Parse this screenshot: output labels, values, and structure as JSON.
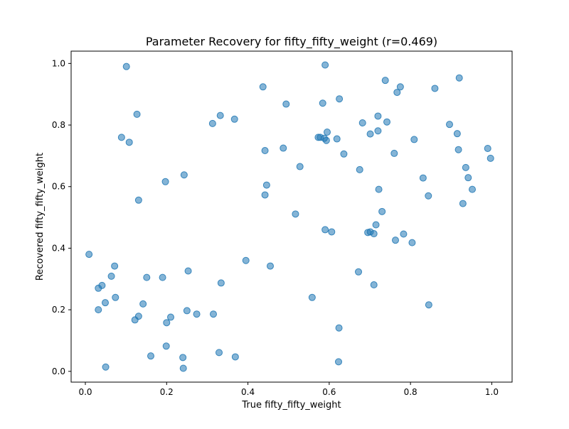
{
  "chart_data": {
    "type": "scatter",
    "title": "Parameter Recovery for fifty_fifty_weight (r=0.469)",
    "xlabel": "True fifty_fifty_weight",
    "ylabel": "Recovered fifty_fifty_weight",
    "xlim": [
      -0.035,
      1.05
    ],
    "ylim": [
      -0.035,
      1.04
    ],
    "xticks": [
      0.0,
      0.2,
      0.4,
      0.6,
      0.8,
      1.0
    ],
    "xtick_labels": [
      "0.0",
      "0.2",
      "0.4",
      "0.6",
      "0.8",
      "1.0"
    ],
    "yticks": [
      0.0,
      0.2,
      0.4,
      0.6,
      0.8,
      1.0
    ],
    "ytick_labels": [
      "0.0",
      "0.2",
      "0.4",
      "0.6",
      "0.8",
      "1.0"
    ],
    "grid": false,
    "legend": "none",
    "marker_color": "#1f77b4",
    "marker_alpha": 0.55,
    "series": [
      {
        "x": [
          0.101,
          0.59,
          0.437,
          0.738,
          0.92,
          0.625,
          0.775,
          0.767,
          0.86,
          0.494,
          0.584,
          0.127,
          0.332,
          0.367,
          0.313,
          0.089,
          0.108,
          0.742,
          0.72,
          0.682,
          0.896,
          0.595,
          0.573,
          0.578,
          0.588,
          0.619,
          0.593,
          0.701,
          0.72,
          0.809,
          0.915,
          0.442,
          0.487,
          0.99,
          0.997,
          0.76,
          0.636,
          0.528,
          0.675,
          0.918,
          0.936,
          0.831,
          0.243,
          0.197,
          0.131,
          0.446,
          0.844,
          0.942,
          0.722,
          0.952,
          0.442,
          0.929,
          0.73,
          0.517,
          0.59,
          0.606,
          0.715,
          0.701,
          0.71,
          0.695,
          0.783,
          0.763,
          0.804,
          0.009,
          0.395,
          0.072,
          0.455,
          0.672,
          0.064,
          0.041,
          0.032,
          0.253,
          0.151,
          0.19,
          0.334,
          0.074,
          0.558,
          0.71,
          0.049,
          0.142,
          0.131,
          0.032,
          0.21,
          0.122,
          0.25,
          0.274,
          0.315,
          0.2,
          0.845,
          0.624,
          0.161,
          0.199,
          0.329,
          0.24,
          0.369,
          0.05,
          0.241,
          0.623
        ],
        "y": [
          0.99,
          0.995,
          0.924,
          0.945,
          0.953,
          0.885,
          0.924,
          0.906,
          0.919,
          0.868,
          0.871,
          0.835,
          0.831,
          0.819,
          0.805,
          0.76,
          0.744,
          0.81,
          0.829,
          0.807,
          0.802,
          0.777,
          0.76,
          0.76,
          0.757,
          0.755,
          0.75,
          0.771,
          0.781,
          0.753,
          0.772,
          0.717,
          0.725,
          0.724,
          0.692,
          0.708,
          0.706,
          0.665,
          0.655,
          0.72,
          0.662,
          0.628,
          0.638,
          0.616,
          0.556,
          0.605,
          0.57,
          0.629,
          0.591,
          0.591,
          0.573,
          0.545,
          0.519,
          0.511,
          0.46,
          0.453,
          0.476,
          0.453,
          0.447,
          0.451,
          0.446,
          0.426,
          0.418,
          0.38,
          0.36,
          0.342,
          0.342,
          0.323,
          0.309,
          0.279,
          0.27,
          0.326,
          0.305,
          0.305,
          0.287,
          0.24,
          0.24,
          0.281,
          0.223,
          0.219,
          0.179,
          0.2,
          0.176,
          0.167,
          0.197,
          0.186,
          0.186,
          0.158,
          0.216,
          0.141,
          0.05,
          0.082,
          0.061,
          0.045,
          0.047,
          0.014,
          0.01,
          0.031
        ]
      }
    ]
  }
}
